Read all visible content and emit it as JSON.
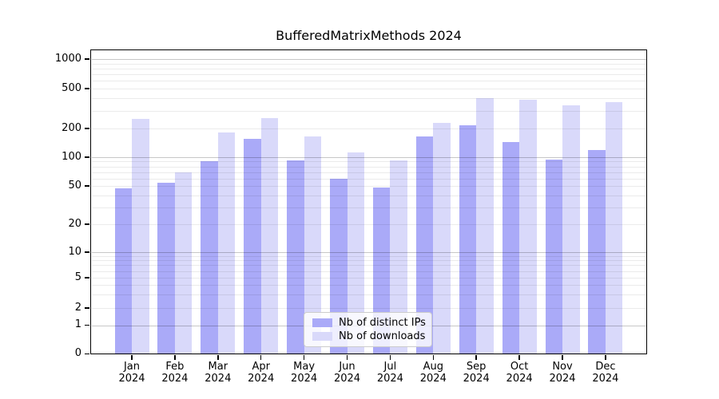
{
  "title": "BufferedMatrixMethods 2024",
  "chart_data": {
    "type": "bar",
    "title": "BufferedMatrixMethods 2024",
    "categories": [
      "Jan",
      "Feb",
      "Mar",
      "Apr",
      "May",
      "Jun",
      "Jul",
      "Aug",
      "Sep",
      "Oct",
      "Nov",
      "Dec"
    ],
    "x_tick_second_line": "2024",
    "series": [
      {
        "name": "Nb of distinct IPs",
        "slug": "distinct-ips",
        "color": "#aaaaf8",
        "values": [
          47,
          54,
          91,
          157,
          93,
          60,
          48,
          166,
          215,
          145,
          95,
          119
        ]
      },
      {
        "name": "Nb of downloads",
        "slug": "downloads",
        "color": "#d9d9fa",
        "values": [
          247,
          70,
          181,
          255,
          165,
          113,
          93,
          226,
          398,
          388,
          342,
          368
        ]
      }
    ],
    "y_axis": {
      "scale": "log1p",
      "ticks": [
        0,
        1,
        2,
        5,
        10,
        20,
        50,
        100,
        200,
        500,
        1000
      ],
      "tick_labels": [
        "0",
        "1",
        "2",
        "5",
        "10",
        "20",
        "50",
        "100",
        "200",
        "500",
        "1000"
      ],
      "range_top": 1250,
      "grid": true
    },
    "legend_position": "inside-bottom-center",
    "colors": {
      "grid_major": "rgba(0,0,0,0.22)",
      "grid_minor": "rgba(0,0,0,0.08)",
      "axis": "#000000"
    }
  }
}
